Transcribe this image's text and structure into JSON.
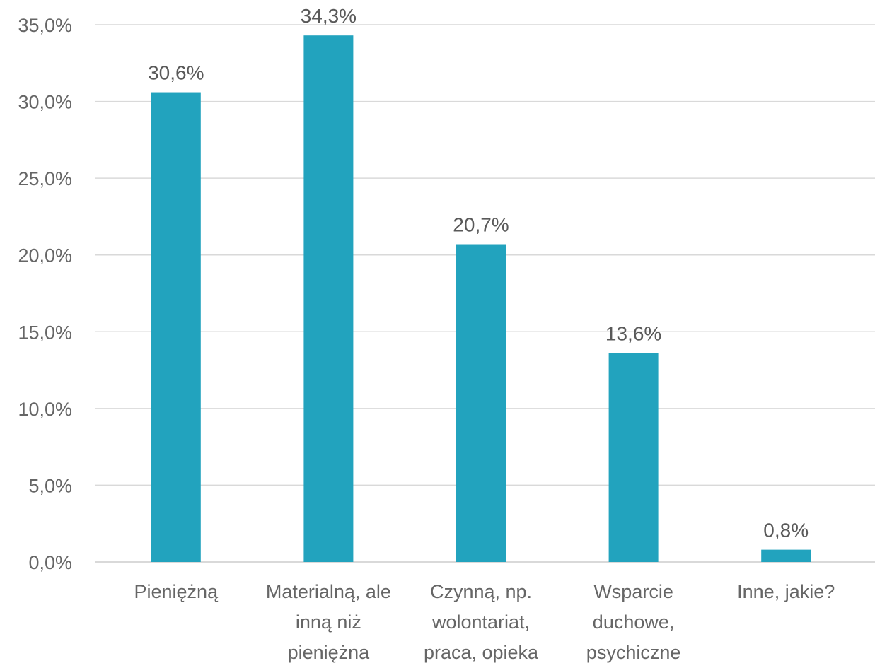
{
  "chart_data": {
    "type": "bar",
    "categories": [
      [
        "Pieniężną"
      ],
      [
        "Materialną, ale",
        "inną niż",
        "pieniężna"
      ],
      [
        "Czynną, np.",
        "wolontariat,",
        "praca, opieka"
      ],
      [
        "Wsparcie",
        "duchowe,",
        "psychiczne"
      ],
      [
        "Inne, jakie?"
      ]
    ],
    "values": [
      30.6,
      34.3,
      20.7,
      13.6,
      0.8
    ],
    "value_labels": [
      "30,6%",
      "34,3%",
      "20,7%",
      "13,6%",
      "0,8%"
    ],
    "ylim": [
      0,
      35
    ],
    "yticks": [
      "0,0%",
      "5,0%",
      "10,0%",
      "15,0%",
      "20,0%",
      "25,0%",
      "30,0%",
      "35,0%"
    ],
    "grid": true,
    "bar_color": "#22a3be",
    "title": "",
    "xlabel": "",
    "ylabel": ""
  }
}
